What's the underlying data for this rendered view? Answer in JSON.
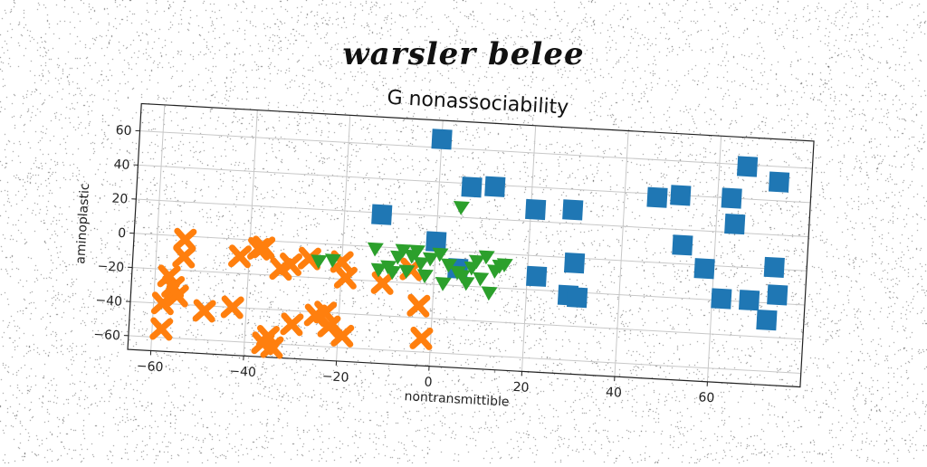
{
  "header": {
    "script_title": "warsler belee"
  },
  "chart_data": {
    "type": "scatter",
    "title": "G nonassociability",
    "xlabel": "nontransmittible",
    "ylabel": "aminoplastic",
    "xlim": [
      -65,
      80
    ],
    "ylim": [
      -68,
      76
    ],
    "xticks": [
      -60,
      -40,
      -20,
      0,
      20,
      40,
      60
    ],
    "yticks": [
      -60,
      -40,
      -20,
      0,
      20,
      40,
      60
    ],
    "grid": true,
    "series": [
      {
        "marker": "square",
        "color": "#1f77b4",
        "points": [
          [
            0,
            65
          ],
          [
            -12,
            19
          ],
          [
            7,
            38
          ],
          [
            12,
            39
          ],
          [
            21,
            27
          ],
          [
            29,
            28
          ],
          [
            0,
            5
          ],
          [
            5,
            -10
          ],
          [
            22,
            -12
          ],
          [
            29,
            -22
          ],
          [
            31,
            -23
          ],
          [
            30,
            -3
          ],
          [
            47,
            38
          ],
          [
            52,
            40
          ],
          [
            63,
            40
          ],
          [
            66,
            59
          ],
          [
            73,
            51
          ],
          [
            53,
            11
          ],
          [
            58,
            -2
          ],
          [
            64,
            25
          ],
          [
            62,
            -19
          ],
          [
            68,
            -19
          ],
          [
            72,
            -30
          ],
          [
            73,
            1
          ],
          [
            74,
            -15
          ]
        ]
      },
      {
        "marker": "x",
        "color": "#ff7f0e",
        "points": [
          [
            -58,
            -55
          ],
          [
            -58,
            -40
          ],
          [
            -57,
            -24
          ],
          [
            -56,
            -30
          ],
          [
            -55,
            -35
          ],
          [
            -54,
            -2
          ],
          [
            -54,
            -12
          ],
          [
            -49,
            -43
          ],
          [
            -43,
            -40
          ],
          [
            -42,
            -10
          ],
          [
            -38,
            -5
          ],
          [
            -37,
            -4
          ],
          [
            -36,
            -60
          ],
          [
            -35,
            -56
          ],
          [
            -34,
            -62
          ],
          [
            -33,
            -16
          ],
          [
            -31,
            -13
          ],
          [
            -30,
            -48
          ],
          [
            -27,
            -9
          ],
          [
            -25,
            -42
          ],
          [
            -23,
            -40
          ],
          [
            -22,
            -48
          ],
          [
            -20,
            -10
          ],
          [
            -19,
            -19
          ],
          [
            -19,
            -53
          ],
          [
            -11,
            -21
          ],
          [
            -5,
            -12
          ],
          [
            -3,
            -33
          ],
          [
            -2,
            -52
          ]
        ]
      },
      {
        "marker": "triangle-down",
        "color": "#2ca02c",
        "points": [
          [
            -25,
            -10
          ],
          [
            -22,
            -9
          ],
          [
            -13,
            -1
          ],
          [
            -12,
            -13
          ],
          [
            -10,
            -11
          ],
          [
            -9,
            -14
          ],
          [
            -8,
            -5
          ],
          [
            -7,
            -1
          ],
          [
            -6,
            -13
          ],
          [
            -5,
            -4
          ],
          [
            -4,
            -1
          ],
          [
            -3,
            -8
          ],
          [
            -2,
            -15
          ],
          [
            -1,
            -5
          ],
          [
            1,
            -2
          ],
          [
            2,
            -19
          ],
          [
            3,
            -8
          ],
          [
            5,
            -12
          ],
          [
            5,
            26
          ],
          [
            6,
            -14
          ],
          [
            7,
            -18
          ],
          [
            8,
            -9
          ],
          [
            9,
            -5
          ],
          [
            10,
            -15
          ],
          [
            11,
            -2
          ],
          [
            12,
            -23
          ],
          [
            13,
            -10
          ],
          [
            14,
            -7
          ],
          [
            15,
            -6
          ]
        ]
      }
    ]
  }
}
